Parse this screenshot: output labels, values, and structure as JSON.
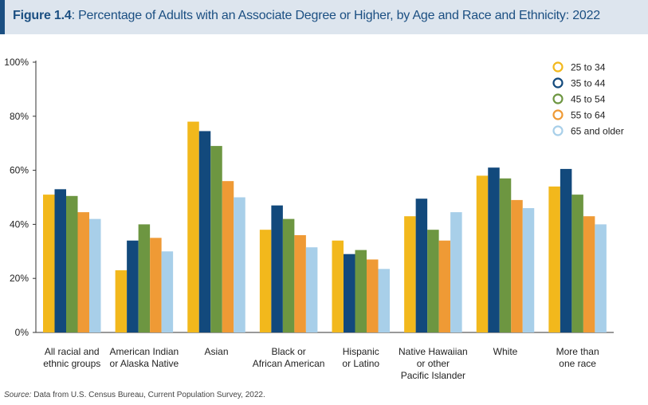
{
  "header": {
    "figure_label": "Figure 1.4",
    "title_text": ": Percentage of Adults with an Associate Degree or Higher, by Age and Race and Ethnicity: 2022"
  },
  "source": {
    "label": "Source:",
    "text": " Data from U.S. Census Bureau, Current Population Survey, 2022."
  },
  "chart_data": {
    "type": "bar",
    "title": "Percentage of Adults with an Associate Degree or Higher, by Age and Race and Ethnicity: 2022",
    "categories": [
      [
        "All racial and",
        "ethnic groups"
      ],
      [
        "American Indian",
        "or Alaska Native"
      ],
      [
        "Asian"
      ],
      [
        "Black or",
        "African American"
      ],
      [
        "Hispanic",
        "or Latino"
      ],
      [
        "Native Hawaiian",
        "or other",
        "Pacific Islander"
      ],
      [
        "White"
      ],
      [
        "More than",
        "one race"
      ]
    ],
    "series": [
      {
        "name": "25 to 34",
        "color": "#f2b81c",
        "values": [
          51,
          23,
          78,
          38,
          34,
          43,
          58,
          54
        ]
      },
      {
        "name": "35 to 44",
        "color": "#12497c",
        "values": [
          53,
          34,
          74.5,
          47,
          29,
          49.5,
          61,
          60.5
        ]
      },
      {
        "name": "45 to 54",
        "color": "#6d9641",
        "values": [
          50.5,
          40,
          69,
          42,
          30.5,
          38,
          57,
          51
        ]
      },
      {
        "name": "55 to 64",
        "color": "#ef9a35",
        "values": [
          44.5,
          35,
          56,
          36,
          27,
          34,
          49,
          43
        ]
      },
      {
        "name": "65 and older",
        "color": "#a8cfe9",
        "values": [
          42,
          30,
          50,
          31.5,
          23.5,
          44.5,
          46,
          40
        ]
      }
    ],
    "yticks": [
      "0%",
      "20%",
      "40%",
      "60%",
      "80%",
      "100%"
    ],
    "ylim": [
      0,
      100
    ],
    "xlabel": "",
    "ylabel": "",
    "grid": false,
    "legend_position": "top-right"
  }
}
